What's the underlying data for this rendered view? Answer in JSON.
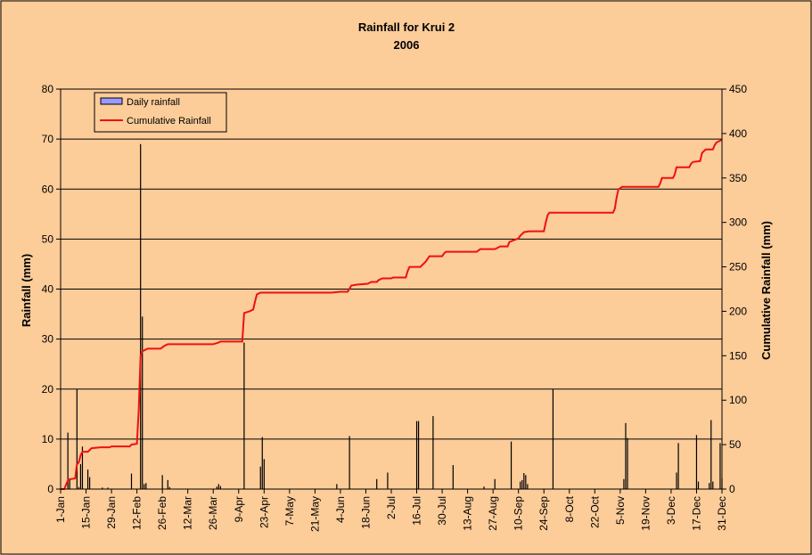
{
  "chart_data": {
    "type": "bar+line",
    "title": "Rainfall for Krui 2",
    "subtitle": "2006",
    "ylabel": "Rainfall (mm)",
    "y2label": "Cumulative Rainfall (mm)",
    "ylim": [
      0,
      80
    ],
    "y2lim": [
      0,
      450
    ],
    "yticks": [
      0,
      10,
      20,
      30,
      40,
      50,
      60,
      70,
      80
    ],
    "y2ticks": [
      0,
      50,
      100,
      150,
      200,
      250,
      300,
      350,
      400,
      450
    ],
    "xlim_days": [
      1,
      365
    ],
    "xticks": [
      {
        "label": "1-Jan",
        "day": 1
      },
      {
        "label": "15-Jan",
        "day": 15
      },
      {
        "label": "29-Jan",
        "day": 29
      },
      {
        "label": "12-Feb",
        "day": 43
      },
      {
        "label": "26-Feb",
        "day": 57
      },
      {
        "label": "12-Mar",
        "day": 71
      },
      {
        "label": "26-Mar",
        "day": 85
      },
      {
        "label": "9-Apr",
        "day": 99
      },
      {
        "label": "23-Apr",
        "day": 113
      },
      {
        "label": "7-May",
        "day": 127
      },
      {
        "label": "21-May",
        "day": 141
      },
      {
        "label": "4-Jun",
        "day": 155
      },
      {
        "label": "18-Jun",
        "day": 169
      },
      {
        "label": "2-Jul",
        "day": 183
      },
      {
        "label": "16-Jul",
        "day": 197
      },
      {
        "label": "30-Jul",
        "day": 211
      },
      {
        "label": "13-Aug",
        "day": 225
      },
      {
        "label": "27-Aug",
        "day": 239
      },
      {
        "label": "10-Sep",
        "day": 253
      },
      {
        "label": "24-Sep",
        "day": 267
      },
      {
        "label": "8-Oct",
        "day": 281
      },
      {
        "label": "22-Oct",
        "day": 295
      },
      {
        "label": "5-Nov",
        "day": 309
      },
      {
        "label": "19-Nov",
        "day": 323
      },
      {
        "label": "3-Dec",
        "day": 337
      },
      {
        "label": "17-Dec",
        "day": 351
      },
      {
        "label": "31-Dec",
        "day": 365
      }
    ],
    "grid": true,
    "legend_position": "top-left",
    "series": [
      {
        "name": "Daily rainfall",
        "type": "bar",
        "color": "#9999ff",
        "points": [
          [
            5,
            11.3
          ],
          [
            6,
            2.0
          ],
          [
            10,
            20.0
          ],
          [
            11,
            0.4
          ],
          [
            12,
            5.0
          ],
          [
            13,
            8.5
          ],
          [
            16,
            3.9
          ],
          [
            17,
            2.4
          ],
          [
            24,
            0.3
          ],
          [
            27,
            0.3
          ],
          [
            40,
            3.1
          ],
          [
            45,
            69.0
          ],
          [
            46,
            34.5
          ],
          [
            47,
            1.0
          ],
          [
            48,
            1.2
          ],
          [
            57,
            2.8
          ],
          [
            60,
            1.8
          ],
          [
            61,
            0.4
          ],
          [
            87,
            0.5
          ],
          [
            88,
            1.0
          ],
          [
            89,
            0.6
          ],
          [
            102,
            29.3
          ],
          [
            111,
            4.5
          ],
          [
            112,
            10.4
          ],
          [
            113,
            6.0
          ],
          [
            153,
            1.0
          ],
          [
            160,
            10.6
          ],
          [
            175,
            2.0
          ],
          [
            181,
            3.3
          ],
          [
            197,
            13.6
          ],
          [
            198,
            13.6
          ],
          [
            206,
            14.6
          ],
          [
            217,
            4.8
          ],
          [
            234,
            0.5
          ],
          [
            240,
            2.0
          ],
          [
            249,
            9.5
          ],
          [
            254,
            1.5
          ],
          [
            255,
            1.8
          ],
          [
            256,
            3.2
          ],
          [
            257,
            2.8
          ],
          [
            258,
            1.0
          ],
          [
            272,
            20.0
          ],
          [
            311,
            2.0
          ],
          [
            312,
            13.2
          ],
          [
            313,
            10.2
          ],
          [
            340,
            3.3
          ],
          [
            341,
            9.2
          ],
          [
            351,
            10.8
          ],
          [
            352,
            1.5
          ],
          [
            358,
            1.2
          ],
          [
            359,
            13.8
          ],
          [
            360,
            1.5
          ],
          [
            364,
            9.2
          ],
          [
            365,
            2.2
          ]
        ]
      },
      {
        "name": "Cumulative Rainfall",
        "type": "line",
        "color": "#ee1111",
        "points": [
          [
            1,
            0
          ],
          [
            3,
            0
          ],
          [
            5,
            10
          ],
          [
            6,
            11
          ],
          [
            9,
            12
          ],
          [
            10,
            28
          ],
          [
            11,
            30
          ],
          [
            12,
            38
          ],
          [
            13,
            42
          ],
          [
            16,
            42
          ],
          [
            18,
            46
          ],
          [
            23,
            47
          ],
          [
            28,
            47
          ],
          [
            29,
            48
          ],
          [
            39,
            48
          ],
          [
            40,
            50
          ],
          [
            43,
            51
          ],
          [
            44,
            90
          ],
          [
            45,
            150
          ],
          [
            46,
            155
          ],
          [
            48,
            157
          ],
          [
            49,
            158
          ],
          [
            56,
            158
          ],
          [
            58,
            161
          ],
          [
            60,
            163
          ],
          [
            85,
            163
          ],
          [
            88,
            165
          ],
          [
            89,
            166
          ],
          [
            101,
            166
          ],
          [
            102,
            198
          ],
          [
            105,
            200
          ],
          [
            107,
            202
          ],
          [
            108,
            211
          ],
          [
            109,
            219
          ],
          [
            111,
            221
          ],
          [
            150,
            221
          ],
          [
            155,
            222
          ],
          [
            159,
            222
          ],
          [
            161,
            229
          ],
          [
            164,
            230
          ],
          [
            170,
            231
          ],
          [
            172,
            233
          ],
          [
            175,
            233
          ],
          [
            176,
            235
          ],
          [
            178,
            237
          ],
          [
            183,
            237
          ],
          [
            184,
            238
          ],
          [
            191,
            238
          ],
          [
            192,
            245
          ],
          [
            193,
            250
          ],
          [
            199,
            250
          ],
          [
            202,
            256
          ],
          [
            204,
            262
          ],
          [
            211,
            262
          ],
          [
            212,
            265
          ],
          [
            213,
            267
          ],
          [
            230,
            267
          ],
          [
            232,
            270
          ],
          [
            240,
            270
          ],
          [
            242,
            272
          ],
          [
            243,
            273
          ],
          [
            247,
            273
          ],
          [
            248,
            278
          ],
          [
            253,
            282
          ],
          [
            254,
            285
          ],
          [
            256,
            289
          ],
          [
            259,
            290
          ],
          [
            267,
            290
          ],
          [
            268,
            300
          ],
          [
            269,
            308
          ],
          [
            270,
            311
          ],
          [
            305,
            311
          ],
          [
            306,
            315
          ],
          [
            307,
            328
          ],
          [
            308,
            337
          ],
          [
            310,
            340
          ],
          [
            330,
            340
          ],
          [
            331,
            344
          ],
          [
            332,
            350
          ],
          [
            338,
            350
          ],
          [
            339,
            354
          ],
          [
            340,
            362
          ],
          [
            347,
            362
          ],
          [
            348,
            366
          ],
          [
            349,
            368
          ],
          [
            353,
            369
          ],
          [
            354,
            378
          ],
          [
            356,
            382
          ],
          [
            360,
            382
          ],
          [
            361,
            387
          ],
          [
            362,
            390
          ],
          [
            365,
            393
          ]
        ]
      }
    ]
  }
}
